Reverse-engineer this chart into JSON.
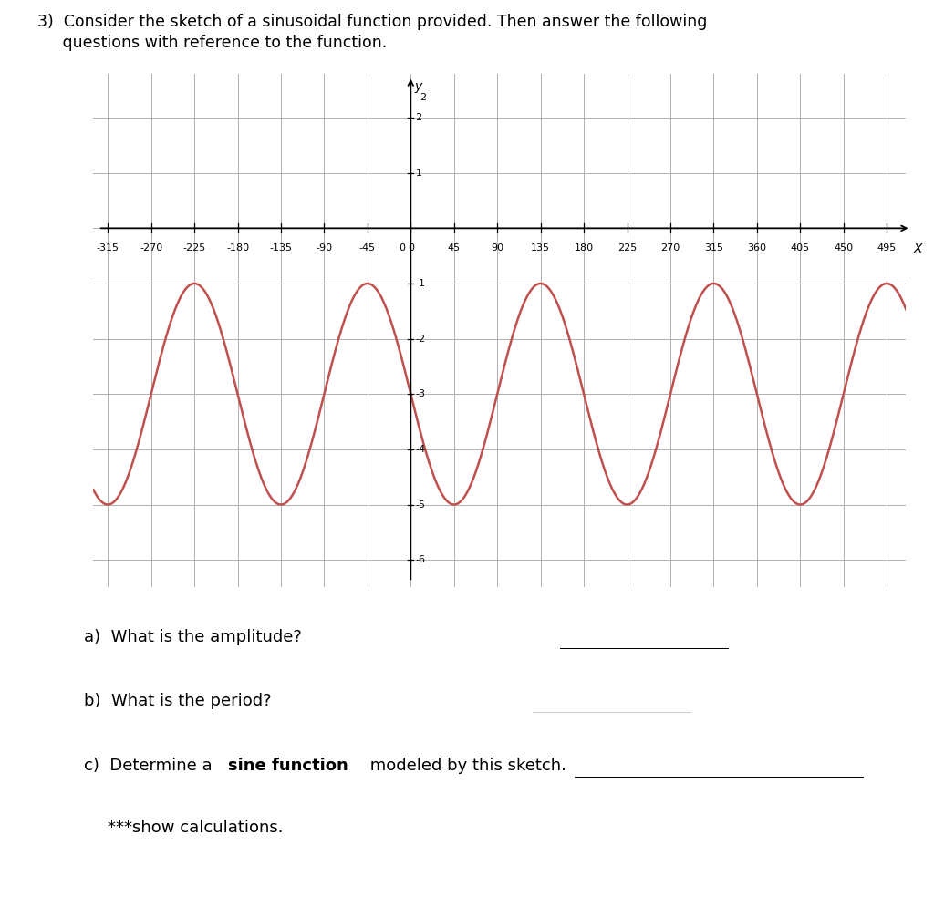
{
  "title_line1": "3)  Consider the sketch of a sinusoidal function provided. Then answer the following",
  "title_line2": "     questions with reference to the function.",
  "amplitude": 2,
  "midline": -3,
  "x_min": -330,
  "x_max": 515,
  "y_min": -6.5,
  "y_max": 2.8,
  "x_ticks": [
    -315,
    -270,
    -225,
    -180,
    -135,
    -90,
    -45,
    0,
    45,
    90,
    135,
    180,
    225,
    270,
    315,
    360,
    405,
    450,
    495
  ],
  "y_ticks_labeled": [
    -5,
    -4,
    -3,
    -2,
    -1,
    1,
    2
  ],
  "y_ticks_labeled_neg6": -6,
  "curve_color": "#c0504d",
  "grid_color": "#b0b0b0",
  "background_color": "#ffffff",
  "question_a": "a)  What is the amplitude?",
  "question_b": "b)  What is the period?",
  "question_c_pre": "c)  Determine a ",
  "question_c_bold": "sine function",
  "question_c_post": " modeled by this sketch.",
  "question_d": "***show calculations.",
  "font_size_title": 12.5,
  "font_size_questions": 13,
  "font_size_ticks": 8
}
